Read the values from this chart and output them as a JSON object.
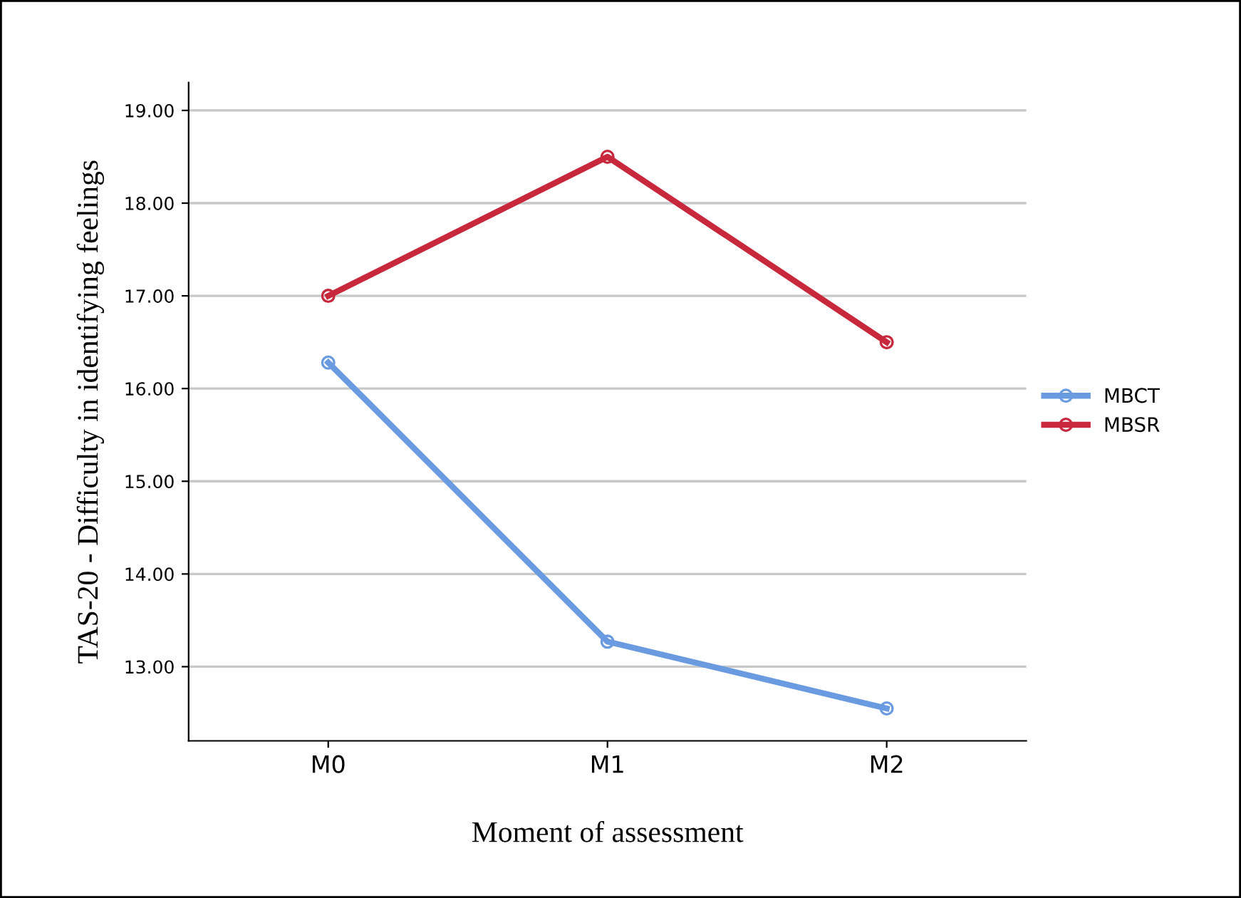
{
  "chart_data": {
    "type": "line",
    "xlabel": "Moment of assessment",
    "ylabel": "TAS-20 - Difficulty in identifying feelings",
    "categories": [
      "M0",
      "M1",
      "M2"
    ],
    "series": [
      {
        "name": "MBCT",
        "color": "#6a9be0",
        "values": [
          16.28,
          13.27,
          12.55
        ]
      },
      {
        "name": "MBSR",
        "color": "#c8283c",
        "values": [
          17.0,
          18.5,
          16.5
        ]
      }
    ],
    "ylim": [
      12.2,
      19.3
    ],
    "yticks": [
      {
        "value": 13,
        "label": "13.00"
      },
      {
        "value": 14,
        "label": "14.00"
      },
      {
        "value": 15,
        "label": "15.00"
      },
      {
        "value": 16,
        "label": "16.00"
      },
      {
        "value": 17,
        "label": "17.00"
      },
      {
        "value": 18,
        "label": "18.00"
      },
      {
        "value": 19,
        "label": "19.00"
      }
    ],
    "grid": "y",
    "legend": "right",
    "marker": "circle",
    "line_style": "solid"
  }
}
